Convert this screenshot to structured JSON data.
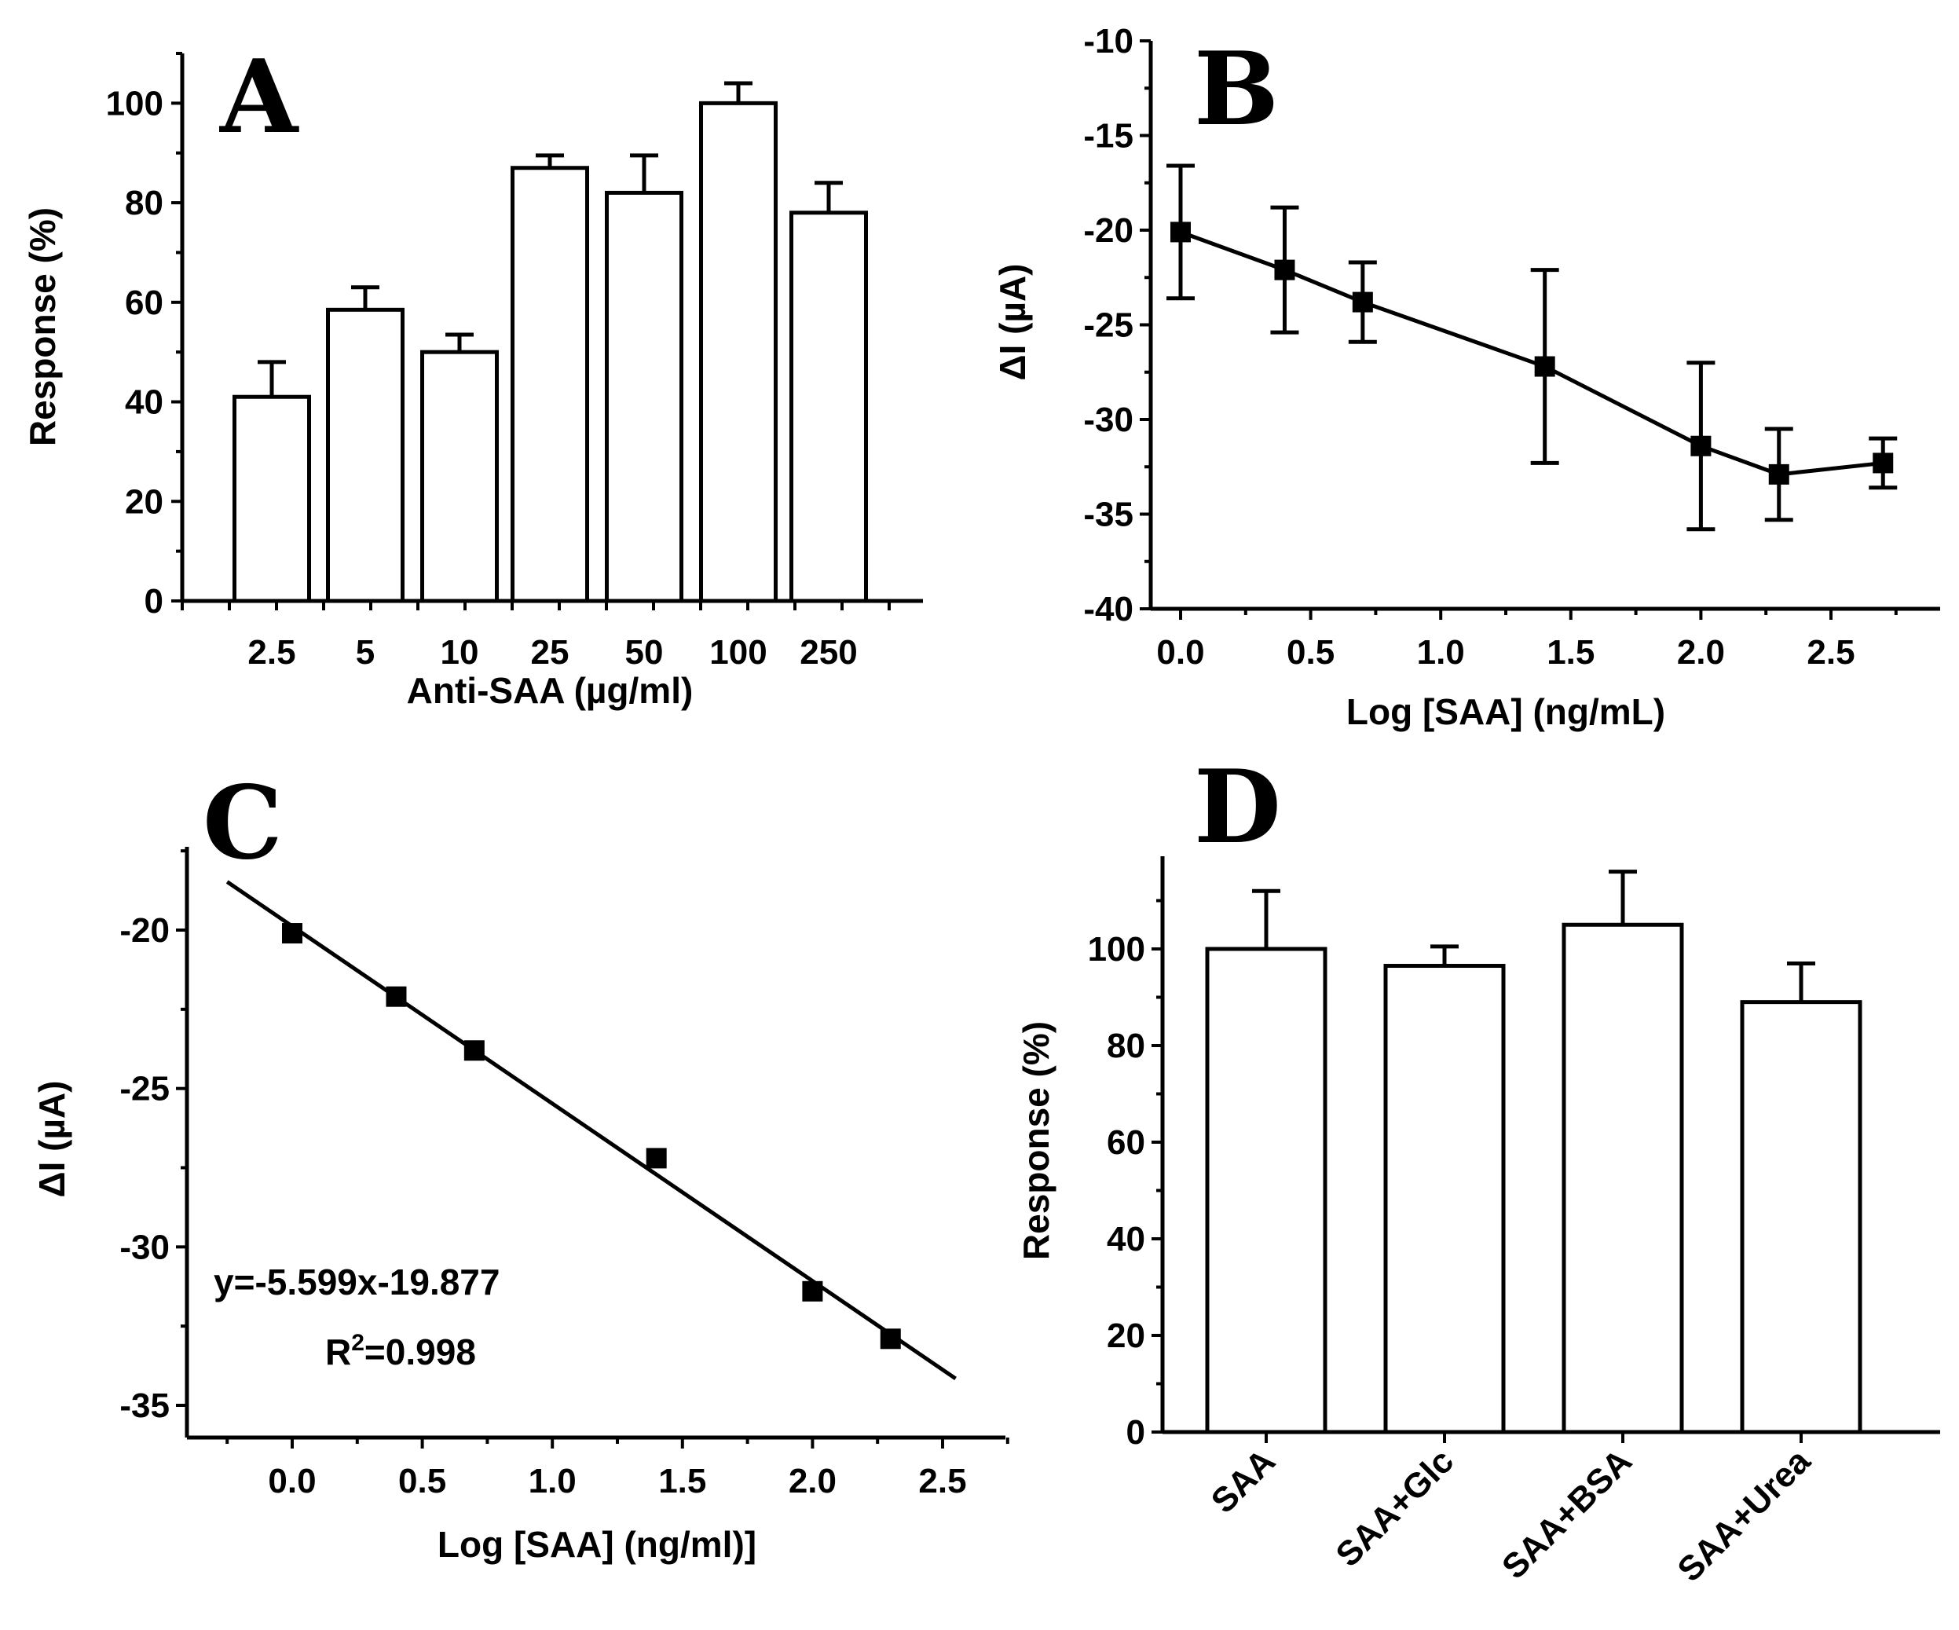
{
  "chart_data": [
    {
      "panel": "A",
      "type": "bar",
      "xlabel": "Anti-SAA (µg/ml)",
      "ylabel": "Response (%)",
      "categories": [
        "2.5",
        "5",
        "10",
        "25",
        "50",
        "100",
        "250"
      ],
      "values": [
        41,
        58.5,
        50,
        87,
        82,
        100,
        78
      ],
      "errors": [
        7,
        4.5,
        3.5,
        2.5,
        7.5,
        4,
        6
      ],
      "ylim": [
        0,
        110
      ],
      "yticks": [
        0,
        20,
        40,
        60,
        80,
        100
      ],
      "grid": false
    },
    {
      "panel": "B",
      "type": "line",
      "xlabel": "Log [SAA] (ng/mL)",
      "ylabel": "ΔI (µA)",
      "x": [
        0.0,
        0.4,
        0.7,
        1.4,
        2.0,
        2.3,
        2.7
      ],
      "y": [
        -20.1,
        -22.1,
        -23.8,
        -27.2,
        -31.4,
        -32.9,
        -32.3
      ],
      "errors": [
        3.5,
        3.3,
        2.1,
        5.1,
        4.4,
        2.4,
        1.3
      ],
      "xlim": [
        -0.1,
        2.8
      ],
      "ylim": [
        -40,
        -10
      ],
      "xticks": [
        "0.0",
        "0.5",
        "1.0",
        "1.5",
        "2.0",
        "2.5"
      ],
      "yticks": [
        "-10",
        "-15",
        "-20",
        "-25",
        "-30",
        "-35",
        "-40"
      ],
      "grid": false
    },
    {
      "panel": "C",
      "type": "scatter",
      "xlabel": "Log [SAA] (ng/ml)]",
      "ylabel": "ΔI (µA)",
      "x": [
        0.0,
        0.4,
        0.7,
        1.4,
        2.0,
        2.3
      ],
      "y": [
        -20.1,
        -22.1,
        -23.8,
        -27.2,
        -31.4,
        -32.9
      ],
      "fit": {
        "slope": -5.599,
        "intercept": -19.877,
        "x_range": [
          -0.25,
          2.55
        ]
      },
      "equation_text": "y=-5.599x-19.877",
      "r2_prefix": "R",
      "r2_sup": "2",
      "r2_value": "=0.998",
      "xlim": [
        -0.4,
        2.75
      ],
      "ylim": [
        -36,
        -17
      ],
      "xticks": [
        "0.0",
        "0.5",
        "1.0",
        "1.5",
        "2.0",
        "2.5"
      ],
      "yticks": [
        "-20",
        "-25",
        "-30",
        "-35"
      ],
      "grid": false
    },
    {
      "panel": "D",
      "type": "bar",
      "xlabel": "",
      "ylabel": "Response (%)",
      "categories": [
        "SAA",
        "SAA+Glc",
        "SAA+BSA",
        "SAA+Urea"
      ],
      "values": [
        100,
        96.5,
        105,
        89
      ],
      "errors": [
        12,
        4,
        11,
        8
      ],
      "ylim": [
        0,
        119
      ],
      "yticks": [
        0,
        20,
        40,
        60,
        80,
        100
      ],
      "grid": false
    }
  ],
  "panel_letters": {
    "a": "A",
    "b": "B",
    "c": "C",
    "d": "D"
  }
}
